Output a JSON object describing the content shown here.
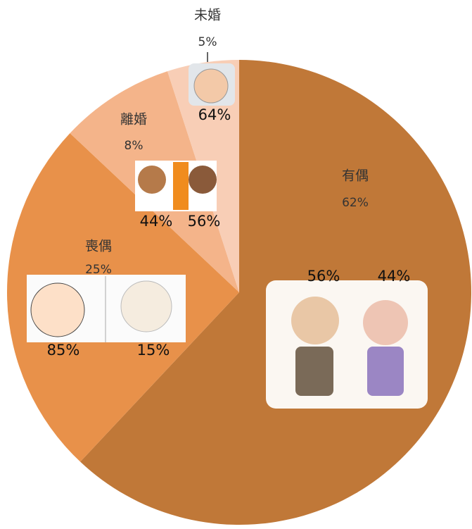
{
  "chart_data": {
    "type": "pie",
    "categories": [
      "有偶",
      "喪偶",
      "離婚",
      "未婚"
    ],
    "values": [
      62,
      25,
      8,
      5
    ],
    "value_labels": [
      "62%",
      "25%",
      "8%",
      "5%"
    ],
    "colors": [
      "#c07838",
      "#e8914a",
      "#f4b48a",
      "#f8ceb6"
    ],
    "sub_labels": [
      [
        "56%",
        "44%"
      ],
      [
        "85%",
        "15%"
      ],
      [
        "44%",
        "56%"
      ],
      [
        "64%"
      ]
    ]
  }
}
